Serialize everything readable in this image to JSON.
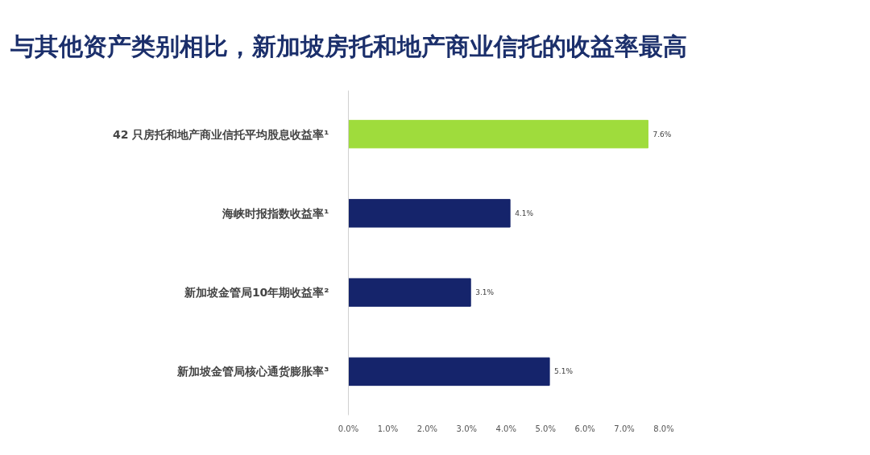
{
  "chart_data": {
    "type": "bar",
    "orientation": "horizontal",
    "title": "与其他资产类别相比，新加坡房托和地产商业信托的收益率最高",
    "categories": [
      "42 只房托和地产商业信托平均股息收益率¹",
      "海峡时报指数收益率¹",
      "新加坡金管局10年期收益率²",
      "新加坡金管局核心通货膨胀率³"
    ],
    "values": [
      7.6,
      4.1,
      3.1,
      5.1
    ],
    "value_labels": [
      "7.6%",
      "4.1%",
      "3.1%",
      "5.1%"
    ],
    "colors": [
      "#9fdc3c",
      "#15246b",
      "#15246b",
      "#15246b"
    ],
    "xlim": [
      0,
      8
    ],
    "xticks": [
      {
        "value": 0,
        "label": "0.0%"
      },
      {
        "value": 1,
        "label": "1.0%"
      },
      {
        "value": 2,
        "label": "2.0%"
      },
      {
        "value": 3,
        "label": "3.0%"
      },
      {
        "value": 4,
        "label": "4.0%"
      },
      {
        "value": 5,
        "label": "5.0%"
      },
      {
        "value": 6,
        "label": "6.0%"
      },
      {
        "value": 7,
        "label": "7.0%"
      },
      {
        "value": 8,
        "label": "8.0%"
      }
    ],
    "grid": false
  }
}
